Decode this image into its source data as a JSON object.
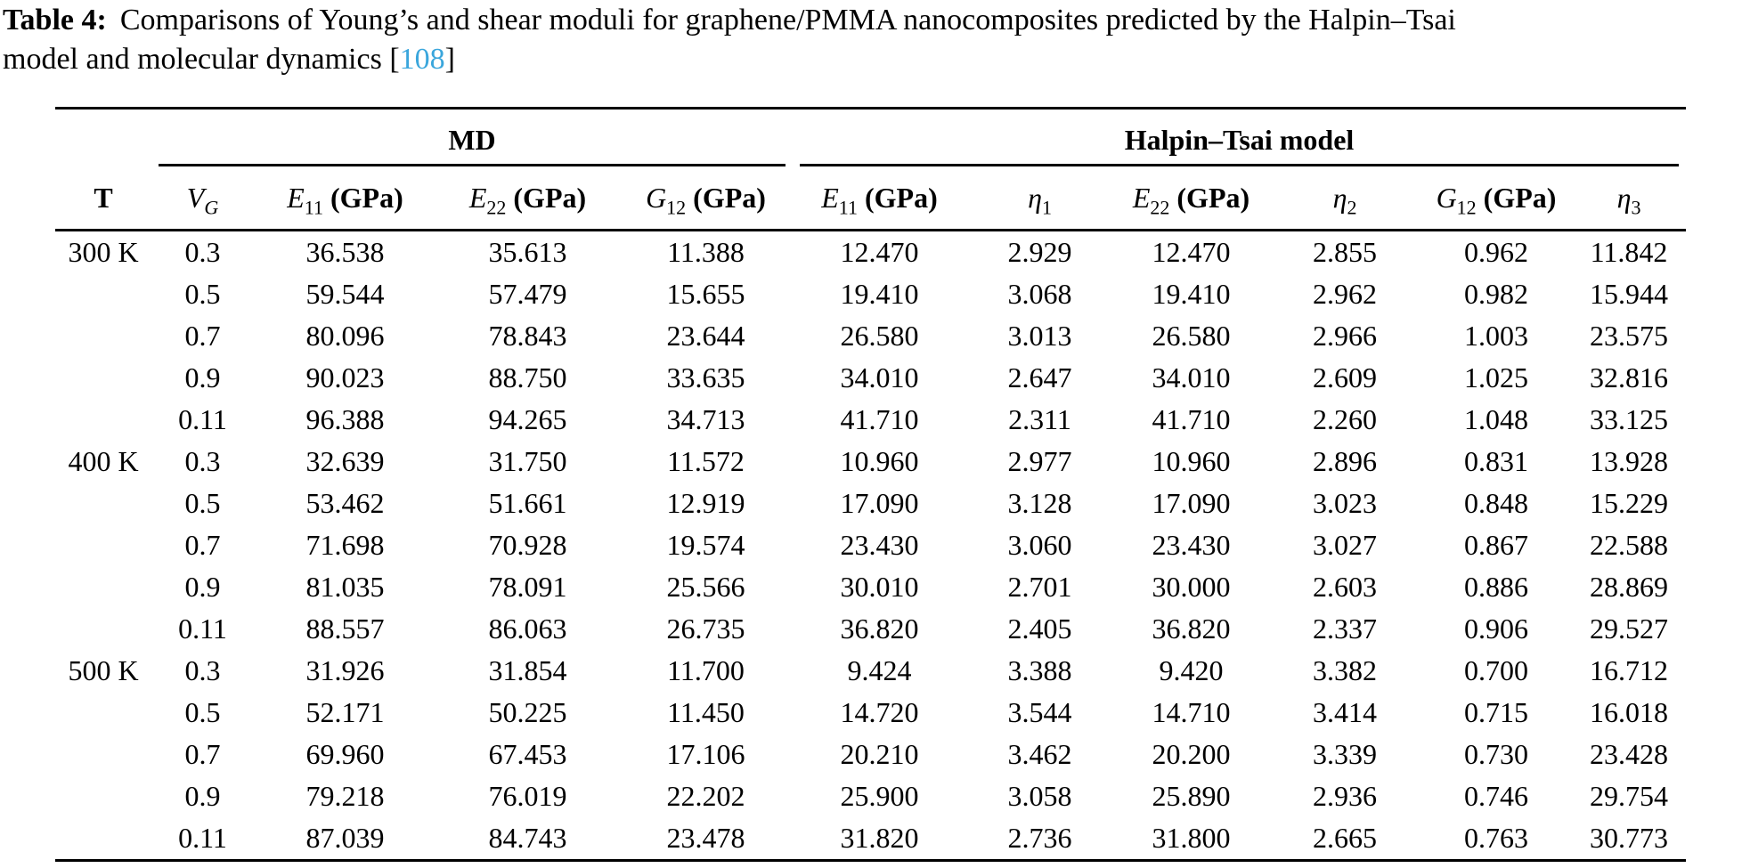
{
  "colors": {
    "citation_blue": "#3aa6dc",
    "text": "#000000",
    "background": "#ffffff",
    "rule": "#000000"
  },
  "caption": {
    "label": "Table 4:",
    "line1": "Comparisons of Young’s and shear moduli for graphene/PMMA nanocomposites predicted by the Halpin–Tsai",
    "line2": "model and molecular dynamics",
    "cite_open": "[",
    "cite": "108",
    "cite_close": "]"
  },
  "table": {
    "group_headers": [
      {
        "id": "md",
        "label": "MD",
        "span": 4
      },
      {
        "id": "halpin-tsai",
        "label": "Halpin–Tsai model",
        "span": 6
      }
    ],
    "columns": [
      {
        "id": "T",
        "base": "T",
        "sub": "",
        "unit": "",
        "italic": false,
        "sub_italic": false,
        "bold": true
      },
      {
        "id": "VG",
        "base": "V",
        "sub": "G",
        "unit": "",
        "italic": true,
        "sub_italic": true,
        "bold": false
      },
      {
        "id": "E11-md",
        "base": "E",
        "sub": "11",
        "unit": "(GPa)",
        "italic": true,
        "sub_italic": false,
        "bold": false
      },
      {
        "id": "E22-md",
        "base": "E",
        "sub": "22",
        "unit": "(GPa)",
        "italic": true,
        "sub_italic": false,
        "bold": false
      },
      {
        "id": "G12-md",
        "base": "G",
        "sub": "12",
        "unit": "(GPa)",
        "italic": true,
        "sub_italic": false,
        "bold": false
      },
      {
        "id": "E11-ht",
        "base": "E",
        "sub": "11",
        "unit": "(GPa)",
        "italic": true,
        "sub_italic": false,
        "bold": false
      },
      {
        "id": "eta1",
        "base": "η",
        "sub": "1",
        "unit": "",
        "italic": true,
        "sub_italic": false,
        "bold": false
      },
      {
        "id": "E22-ht",
        "base": "E",
        "sub": "22",
        "unit": "(GPa)",
        "italic": true,
        "sub_italic": false,
        "bold": false
      },
      {
        "id": "eta2",
        "base": "η",
        "sub": "2",
        "unit": "",
        "italic": true,
        "sub_italic": false,
        "bold": false
      },
      {
        "id": "G12-ht",
        "base": "G",
        "sub": "12",
        "unit": "(GPa)",
        "italic": true,
        "sub_italic": false,
        "bold": false
      },
      {
        "id": "eta3",
        "base": "η",
        "sub": "3",
        "unit": "",
        "italic": true,
        "sub_italic": false,
        "bold": false
      }
    ],
    "rows": [
      [
        "300 K",
        "0.3",
        "36.538",
        "35.613",
        "11.388",
        "12.470",
        "2.929",
        "12.470",
        "2.855",
        "0.962",
        "11.842"
      ],
      [
        "",
        "0.5",
        "59.544",
        "57.479",
        "15.655",
        "19.410",
        "3.068",
        "19.410",
        "2.962",
        "0.982",
        "15.944"
      ],
      [
        "",
        "0.7",
        "80.096",
        "78.843",
        "23.644",
        "26.580",
        "3.013",
        "26.580",
        "2.966",
        "1.003",
        "23.575"
      ],
      [
        "",
        "0.9",
        "90.023",
        "88.750",
        "33.635",
        "34.010",
        "2.647",
        "34.010",
        "2.609",
        "1.025",
        "32.816"
      ],
      [
        "",
        "0.11",
        "96.388",
        "94.265",
        "34.713",
        "41.710",
        "2.311",
        "41.710",
        "2.260",
        "1.048",
        "33.125"
      ],
      [
        "400 K",
        "0.3",
        "32.639",
        "31.750",
        "11.572",
        "10.960",
        "2.977",
        "10.960",
        "2.896",
        "0.831",
        "13.928"
      ],
      [
        "",
        "0.5",
        "53.462",
        "51.661",
        "12.919",
        "17.090",
        "3.128",
        "17.090",
        "3.023",
        "0.848",
        "15.229"
      ],
      [
        "",
        "0.7",
        "71.698",
        "70.928",
        "19.574",
        "23.430",
        "3.060",
        "23.430",
        "3.027",
        "0.867",
        "22.588"
      ],
      [
        "",
        "0.9",
        "81.035",
        "78.091",
        "25.566",
        "30.010",
        "2.701",
        "30.000",
        "2.603",
        "0.886",
        "28.869"
      ],
      [
        "",
        "0.11",
        "88.557",
        "86.063",
        "26.735",
        "36.820",
        "2.405",
        "36.820",
        "2.337",
        "0.906",
        "29.527"
      ],
      [
        "500 K",
        "0.3",
        "31.926",
        "31.854",
        "11.700",
        "9.424",
        "3.388",
        "9.420",
        "3.382",
        "0.700",
        "16.712"
      ],
      [
        "",
        "0.5",
        "52.171",
        "50.225",
        "11.450",
        "14.720",
        "3.544",
        "14.710",
        "3.414",
        "0.715",
        "16.018"
      ],
      [
        "",
        "0.7",
        "69.960",
        "67.453",
        "17.106",
        "20.210",
        "3.462",
        "20.200",
        "3.339",
        "0.730",
        "23.428"
      ],
      [
        "",
        "0.9",
        "79.218",
        "76.019",
        "22.202",
        "25.900",
        "3.058",
        "25.890",
        "2.936",
        "0.746",
        "29.754"
      ],
      [
        "",
        "0.11",
        "87.039",
        "84.743",
        "23.478",
        "31.820",
        "2.736",
        "31.800",
        "2.665",
        "0.763",
        "30.773"
      ]
    ]
  }
}
